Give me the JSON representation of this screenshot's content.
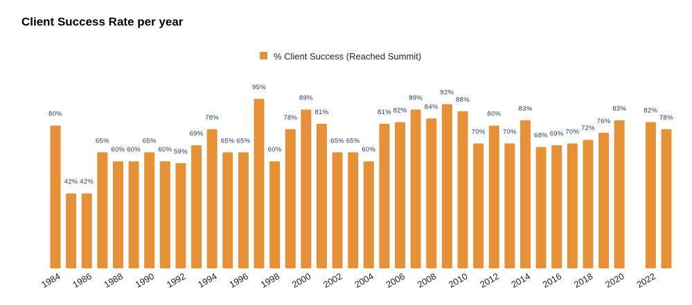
{
  "chart_data": {
    "type": "bar",
    "title": "Client Success Rate per year",
    "xlabel": "",
    "ylabel": "",
    "ylim": [
      0,
      100
    ],
    "grid": false,
    "legend_position": "top-center",
    "series": [
      {
        "name": "% Client Success (Reached Summit)",
        "color": "#E69138",
        "values": [
          80,
          42,
          42,
          65,
          60,
          60,
          65,
          60,
          59,
          69,
          78,
          65,
          65,
          95,
          60,
          78,
          89,
          81,
          65,
          65,
          60,
          81,
          82,
          89,
          84,
          92,
          88,
          70,
          80,
          70,
          83,
          68,
          69,
          70,
          72,
          76,
          83,
          null,
          82,
          78
        ]
      }
    ],
    "categories": [
      "1984",
      "1985",
      "1986",
      "1987",
      "1988",
      "1989",
      "1990",
      "1991",
      "1992",
      "1993",
      "1994",
      "1995",
      "1996",
      "1997",
      "1998",
      "1999",
      "2000",
      "2001",
      "2002",
      "2003",
      "2004",
      "2005",
      "2006",
      "2007",
      "2008",
      "2009",
      "2010",
      "2011",
      "2012",
      "2013",
      "2014",
      "2015",
      "2016",
      "2017",
      "2018",
      "2019",
      "2020",
      "2021",
      "2022",
      "2023"
    ],
    "tick_labels": [
      "1984",
      "1986",
      "1988",
      "1990",
      "1992",
      "1994",
      "1996",
      "1998",
      "2000",
      "2002",
      "2004",
      "2006",
      "2008",
      "2010",
      "2012",
      "2014",
      "2016",
      "2018",
      "2020",
      "2022"
    ],
    "data_label_suffix": "%",
    "data_label_color": "#1C3A5E"
  }
}
